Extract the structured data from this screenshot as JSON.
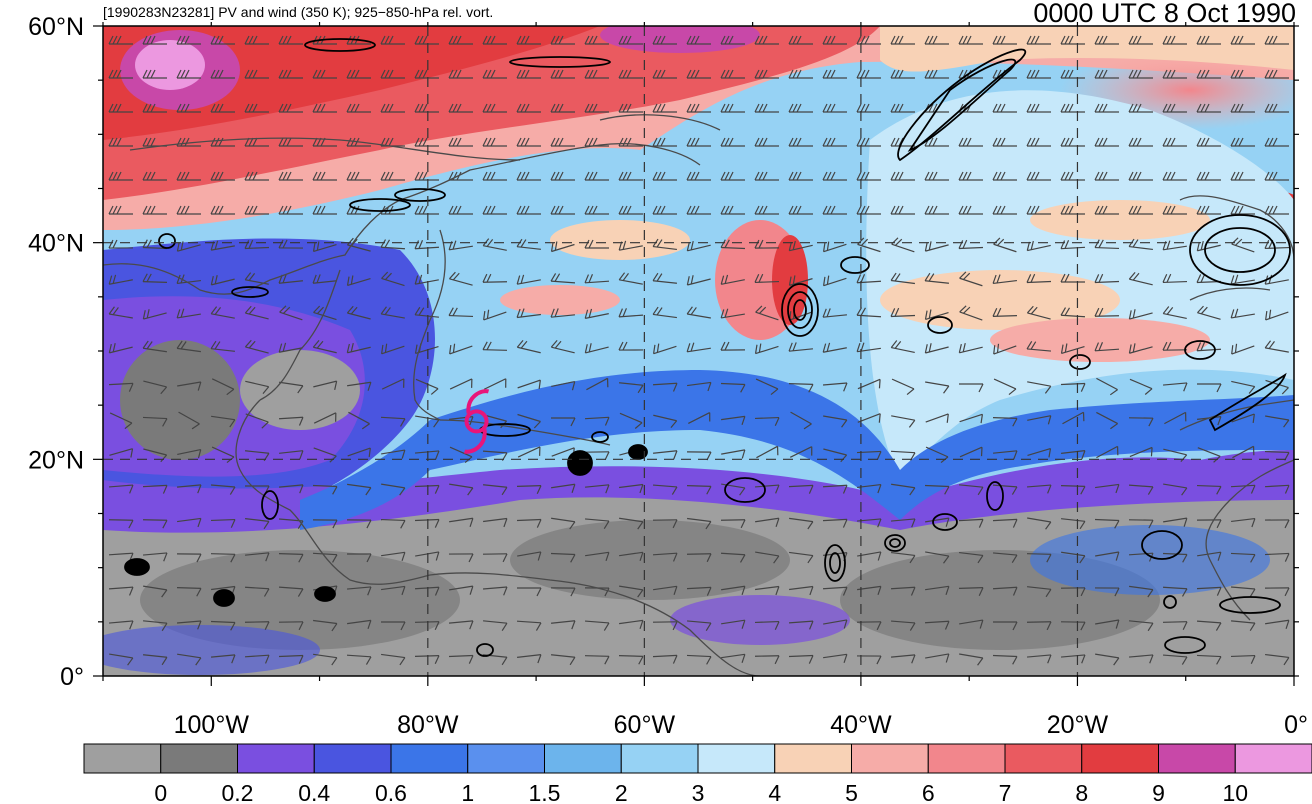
{
  "header": {
    "title_left": "[1990283N23281] PV and wind (350 K); 925−850-hPa rel. vort.",
    "title_right": "0000 UTC 8 Oct 1990"
  },
  "map": {
    "lat_labels": [
      {
        "text": "60°N",
        "lat": 60
      },
      {
        "text": "40°N",
        "lat": 40
      },
      {
        "text": "20°N",
        "lat": 20
      },
      {
        "text": "0°",
        "lat": 0
      }
    ],
    "lon_labels": [
      {
        "text": "100°W",
        "lon": -100
      },
      {
        "text": "80°W",
        "lon": -80
      },
      {
        "text": "60°W",
        "lon": -60
      },
      {
        "text": "40°W",
        "lon": -40
      },
      {
        "text": "20°W",
        "lon": -20
      },
      {
        "text": "0°",
        "lon": 0
      }
    ],
    "lon_range": [
      -110,
      0
    ],
    "lat_range": [
      0,
      60
    ],
    "grid_lons": [
      -80,
      -60,
      -40,
      -20
    ],
    "grid_lats": [
      40,
      20
    ],
    "storm_symbol": {
      "name": "tropical-cyclone-icon",
      "lon": -75.5,
      "lat": 23.5,
      "color": "#e8157a"
    }
  },
  "colorbar": {
    "labels": [
      "0",
      "0.2",
      "0.4",
      "0.6",
      "1",
      "1.5",
      "2",
      "3",
      "4",
      "5",
      "6",
      "7",
      "8",
      "9",
      "10"
    ],
    "colors": [
      "#9f9f9f",
      "#7a7a7a",
      "#7a4fe0",
      "#4a55e0",
      "#3b75e8",
      "#5a90ee",
      "#6cb4ec",
      "#96d2f4",
      "#c6e8fa",
      "#f8d2b6",
      "#f6aca8",
      "#f2868c",
      "#ea5a60",
      "#e23c40",
      "#c848a8",
      "#ec98e0"
    ]
  }
}
